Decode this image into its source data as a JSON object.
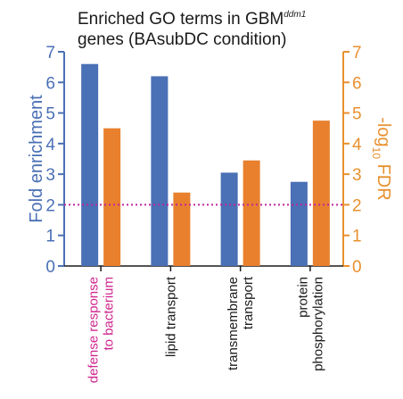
{
  "chart_data": {
    "type": "bar",
    "title_line1": "Enriched GO terms in GBM",
    "title_superscript": "ddm1",
    "title_line2": "genes (BAsubDC condition)",
    "ylabel_left": "Fold enrichment",
    "ylabel_right_prefix": "-log",
    "ylabel_right_sub": "10",
    "ylabel_right_suffix": " FDR",
    "ylim_left": [
      0,
      7
    ],
    "ylim_right": [
      0,
      7
    ],
    "yticks_left": [
      "0",
      "1",
      "2",
      "3",
      "4",
      "5",
      "6",
      "7"
    ],
    "yticks_right": [
      "0",
      "1",
      "2",
      "3",
      "4",
      "5",
      "6",
      "7"
    ],
    "threshold": 2,
    "categories": [
      {
        "lines": [
          "defense response",
          "to bacterium"
        ],
        "highlight": true
      },
      {
        "lines": [
          "lipid transport"
        ],
        "highlight": false
      },
      {
        "lines": [
          "transmembrane",
          "transport"
        ],
        "highlight": false
      },
      {
        "lines": [
          "protein",
          "phosphorylation"
        ],
        "highlight": false
      }
    ],
    "series": [
      {
        "axis": "left",
        "color": "#4a70b5",
        "values": [
          6.6,
          6.2,
          3.05,
          2.75
        ]
      },
      {
        "axis": "right",
        "color": "#e8802e",
        "values": [
          4.5,
          2.4,
          3.45,
          4.75
        ]
      }
    ],
    "colors": {
      "left_axis": "#4a70b5",
      "right_axis": "#e8902e",
      "threshold_line": "#c0249e",
      "highlight_label": "#d0268e",
      "label": "#1a1a1a"
    }
  }
}
